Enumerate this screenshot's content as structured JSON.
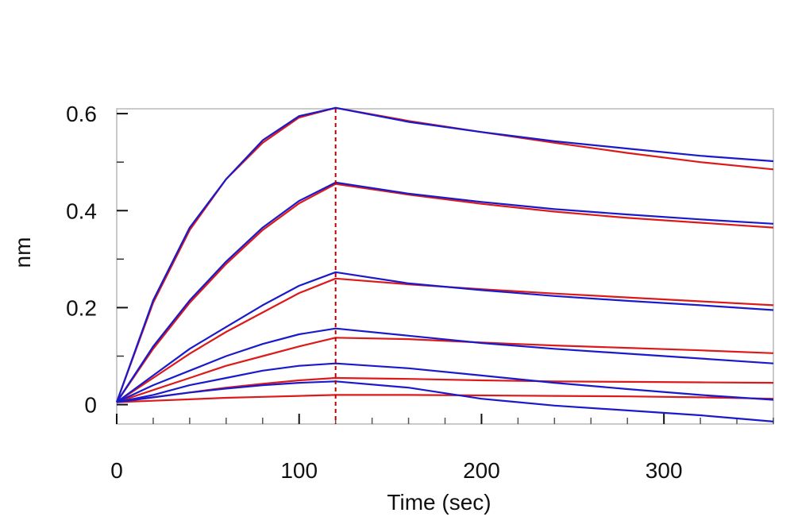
{
  "chart_data": {
    "type": "line",
    "xlabel": "Time (sec)",
    "ylabel": "nm",
    "xlim": [
      0,
      360
    ],
    "ylim": [
      -0.04,
      0.61
    ],
    "x_ticks": [
      0,
      100,
      200,
      300
    ],
    "x_tick_labels": [
      "0",
      "100",
      "200",
      "300"
    ],
    "y_ticks": [
      0,
      0.2,
      0.4,
      0.6
    ],
    "y_tick_labels": [
      "0",
      "0.2",
      "0.4",
      "0.6"
    ],
    "association_end_time": 120,
    "grid": false,
    "colors": {
      "measured": "#1a1acc",
      "fit": "#dd1a1a",
      "marker_line": "#bb0000"
    },
    "series": [
      {
        "kind": "measured",
        "points": [
          [
            0,
            0.005
          ],
          [
            20,
            0.215
          ],
          [
            40,
            0.365
          ],
          [
            60,
            0.465
          ],
          [
            80,
            0.545
          ],
          [
            100,
            0.595
          ],
          [
            120,
            0.612
          ],
          [
            160,
            0.583
          ],
          [
            200,
            0.562
          ],
          [
            240,
            0.543
          ],
          [
            280,
            0.528
          ],
          [
            320,
            0.513
          ],
          [
            360,
            0.502
          ]
        ]
      },
      {
        "kind": "fit",
        "points": [
          [
            0,
            0.005
          ],
          [
            20,
            0.21
          ],
          [
            40,
            0.36
          ],
          [
            60,
            0.465
          ],
          [
            80,
            0.54
          ],
          [
            100,
            0.592
          ],
          [
            120,
            0.612
          ],
          [
            160,
            0.585
          ],
          [
            200,
            0.562
          ],
          [
            240,
            0.54
          ],
          [
            280,
            0.519
          ],
          [
            320,
            0.5
          ],
          [
            360,
            0.485
          ]
        ]
      },
      {
        "kind": "measured",
        "points": [
          [
            0,
            0.005
          ],
          [
            20,
            0.12
          ],
          [
            40,
            0.215
          ],
          [
            60,
            0.295
          ],
          [
            80,
            0.365
          ],
          [
            100,
            0.42
          ],
          [
            120,
            0.458
          ],
          [
            160,
            0.435
          ],
          [
            200,
            0.418
          ],
          [
            240,
            0.403
          ],
          [
            280,
            0.392
          ],
          [
            320,
            0.382
          ],
          [
            360,
            0.373
          ]
        ]
      },
      {
        "kind": "fit",
        "points": [
          [
            0,
            0.005
          ],
          [
            20,
            0.115
          ],
          [
            40,
            0.21
          ],
          [
            60,
            0.29
          ],
          [
            80,
            0.36
          ],
          [
            100,
            0.415
          ],
          [
            120,
            0.455
          ],
          [
            160,
            0.433
          ],
          [
            200,
            0.414
          ],
          [
            240,
            0.398
          ],
          [
            280,
            0.385
          ],
          [
            320,
            0.375
          ],
          [
            360,
            0.365
          ]
        ]
      },
      {
        "kind": "measured",
        "points": [
          [
            0,
            0.005
          ],
          [
            20,
            0.06
          ],
          [
            40,
            0.115
          ],
          [
            60,
            0.16
          ],
          [
            80,
            0.205
          ],
          [
            100,
            0.245
          ],
          [
            120,
            0.273
          ],
          [
            160,
            0.25
          ],
          [
            200,
            0.236
          ],
          [
            240,
            0.224
          ],
          [
            280,
            0.214
          ],
          [
            320,
            0.205
          ],
          [
            360,
            0.195
          ]
        ]
      },
      {
        "kind": "fit",
        "points": [
          [
            0,
            0.005
          ],
          [
            20,
            0.055
          ],
          [
            40,
            0.105
          ],
          [
            60,
            0.15
          ],
          [
            80,
            0.19
          ],
          [
            100,
            0.23
          ],
          [
            120,
            0.26
          ],
          [
            160,
            0.248
          ],
          [
            200,
            0.238
          ],
          [
            240,
            0.229
          ],
          [
            280,
            0.221
          ],
          [
            320,
            0.213
          ],
          [
            360,
            0.205
          ]
        ]
      },
      {
        "kind": "measured",
        "points": [
          [
            0,
            0.005
          ],
          [
            20,
            0.04
          ],
          [
            40,
            0.07
          ],
          [
            60,
            0.1
          ],
          [
            80,
            0.125
          ],
          [
            100,
            0.145
          ],
          [
            120,
            0.157
          ],
          [
            160,
            0.142
          ],
          [
            200,
            0.127
          ],
          [
            240,
            0.115
          ],
          [
            280,
            0.105
          ],
          [
            320,
            0.095
          ],
          [
            360,
            0.085
          ]
        ]
      },
      {
        "kind": "fit",
        "points": [
          [
            0,
            0.005
          ],
          [
            20,
            0.03
          ],
          [
            40,
            0.055
          ],
          [
            60,
            0.08
          ],
          [
            80,
            0.1
          ],
          [
            100,
            0.12
          ],
          [
            120,
            0.138
          ],
          [
            160,
            0.135
          ],
          [
            200,
            0.128
          ],
          [
            240,
            0.122
          ],
          [
            280,
            0.117
          ],
          [
            320,
            0.112
          ],
          [
            360,
            0.106
          ]
        ]
      },
      {
        "kind": "measured",
        "points": [
          [
            0,
            0.005
          ],
          [
            20,
            0.02
          ],
          [
            40,
            0.04
          ],
          [
            60,
            0.055
          ],
          [
            80,
            0.07
          ],
          [
            100,
            0.08
          ],
          [
            120,
            0.085
          ],
          [
            160,
            0.075
          ],
          [
            200,
            0.06
          ],
          [
            240,
            0.045
          ],
          [
            280,
            0.032
          ],
          [
            320,
            0.02
          ],
          [
            360,
            0.01
          ]
        ]
      },
      {
        "kind": "fit",
        "points": [
          [
            0,
            0.005
          ],
          [
            20,
            0.015
          ],
          [
            40,
            0.025
          ],
          [
            60,
            0.035
          ],
          [
            80,
            0.043
          ],
          [
            100,
            0.05
          ],
          [
            120,
            0.055
          ],
          [
            160,
            0.053
          ],
          [
            200,
            0.05
          ],
          [
            240,
            0.048
          ],
          [
            280,
            0.047
          ],
          [
            320,
            0.046
          ],
          [
            360,
            0.045
          ]
        ]
      },
      {
        "kind": "measured",
        "points": [
          [
            0,
            0.005
          ],
          [
            20,
            0.015
          ],
          [
            40,
            0.025
          ],
          [
            60,
            0.033
          ],
          [
            80,
            0.04
          ],
          [
            100,
            0.045
          ],
          [
            120,
            0.048
          ],
          [
            160,
            0.035
          ],
          [
            200,
            0.012
          ],
          [
            240,
            -0.002
          ],
          [
            280,
            -0.012
          ],
          [
            320,
            -0.022
          ],
          [
            360,
            -0.035
          ]
        ]
      },
      {
        "kind": "fit",
        "points": [
          [
            0,
            0.005
          ],
          [
            20,
            0.008
          ],
          [
            40,
            0.011
          ],
          [
            60,
            0.014
          ],
          [
            80,
            0.016
          ],
          [
            100,
            0.018
          ],
          [
            120,
            0.02
          ],
          [
            160,
            0.02
          ],
          [
            200,
            0.019
          ],
          [
            240,
            0.018
          ],
          [
            280,
            0.017
          ],
          [
            320,
            0.015
          ],
          [
            360,
            0.012
          ]
        ]
      }
    ]
  }
}
